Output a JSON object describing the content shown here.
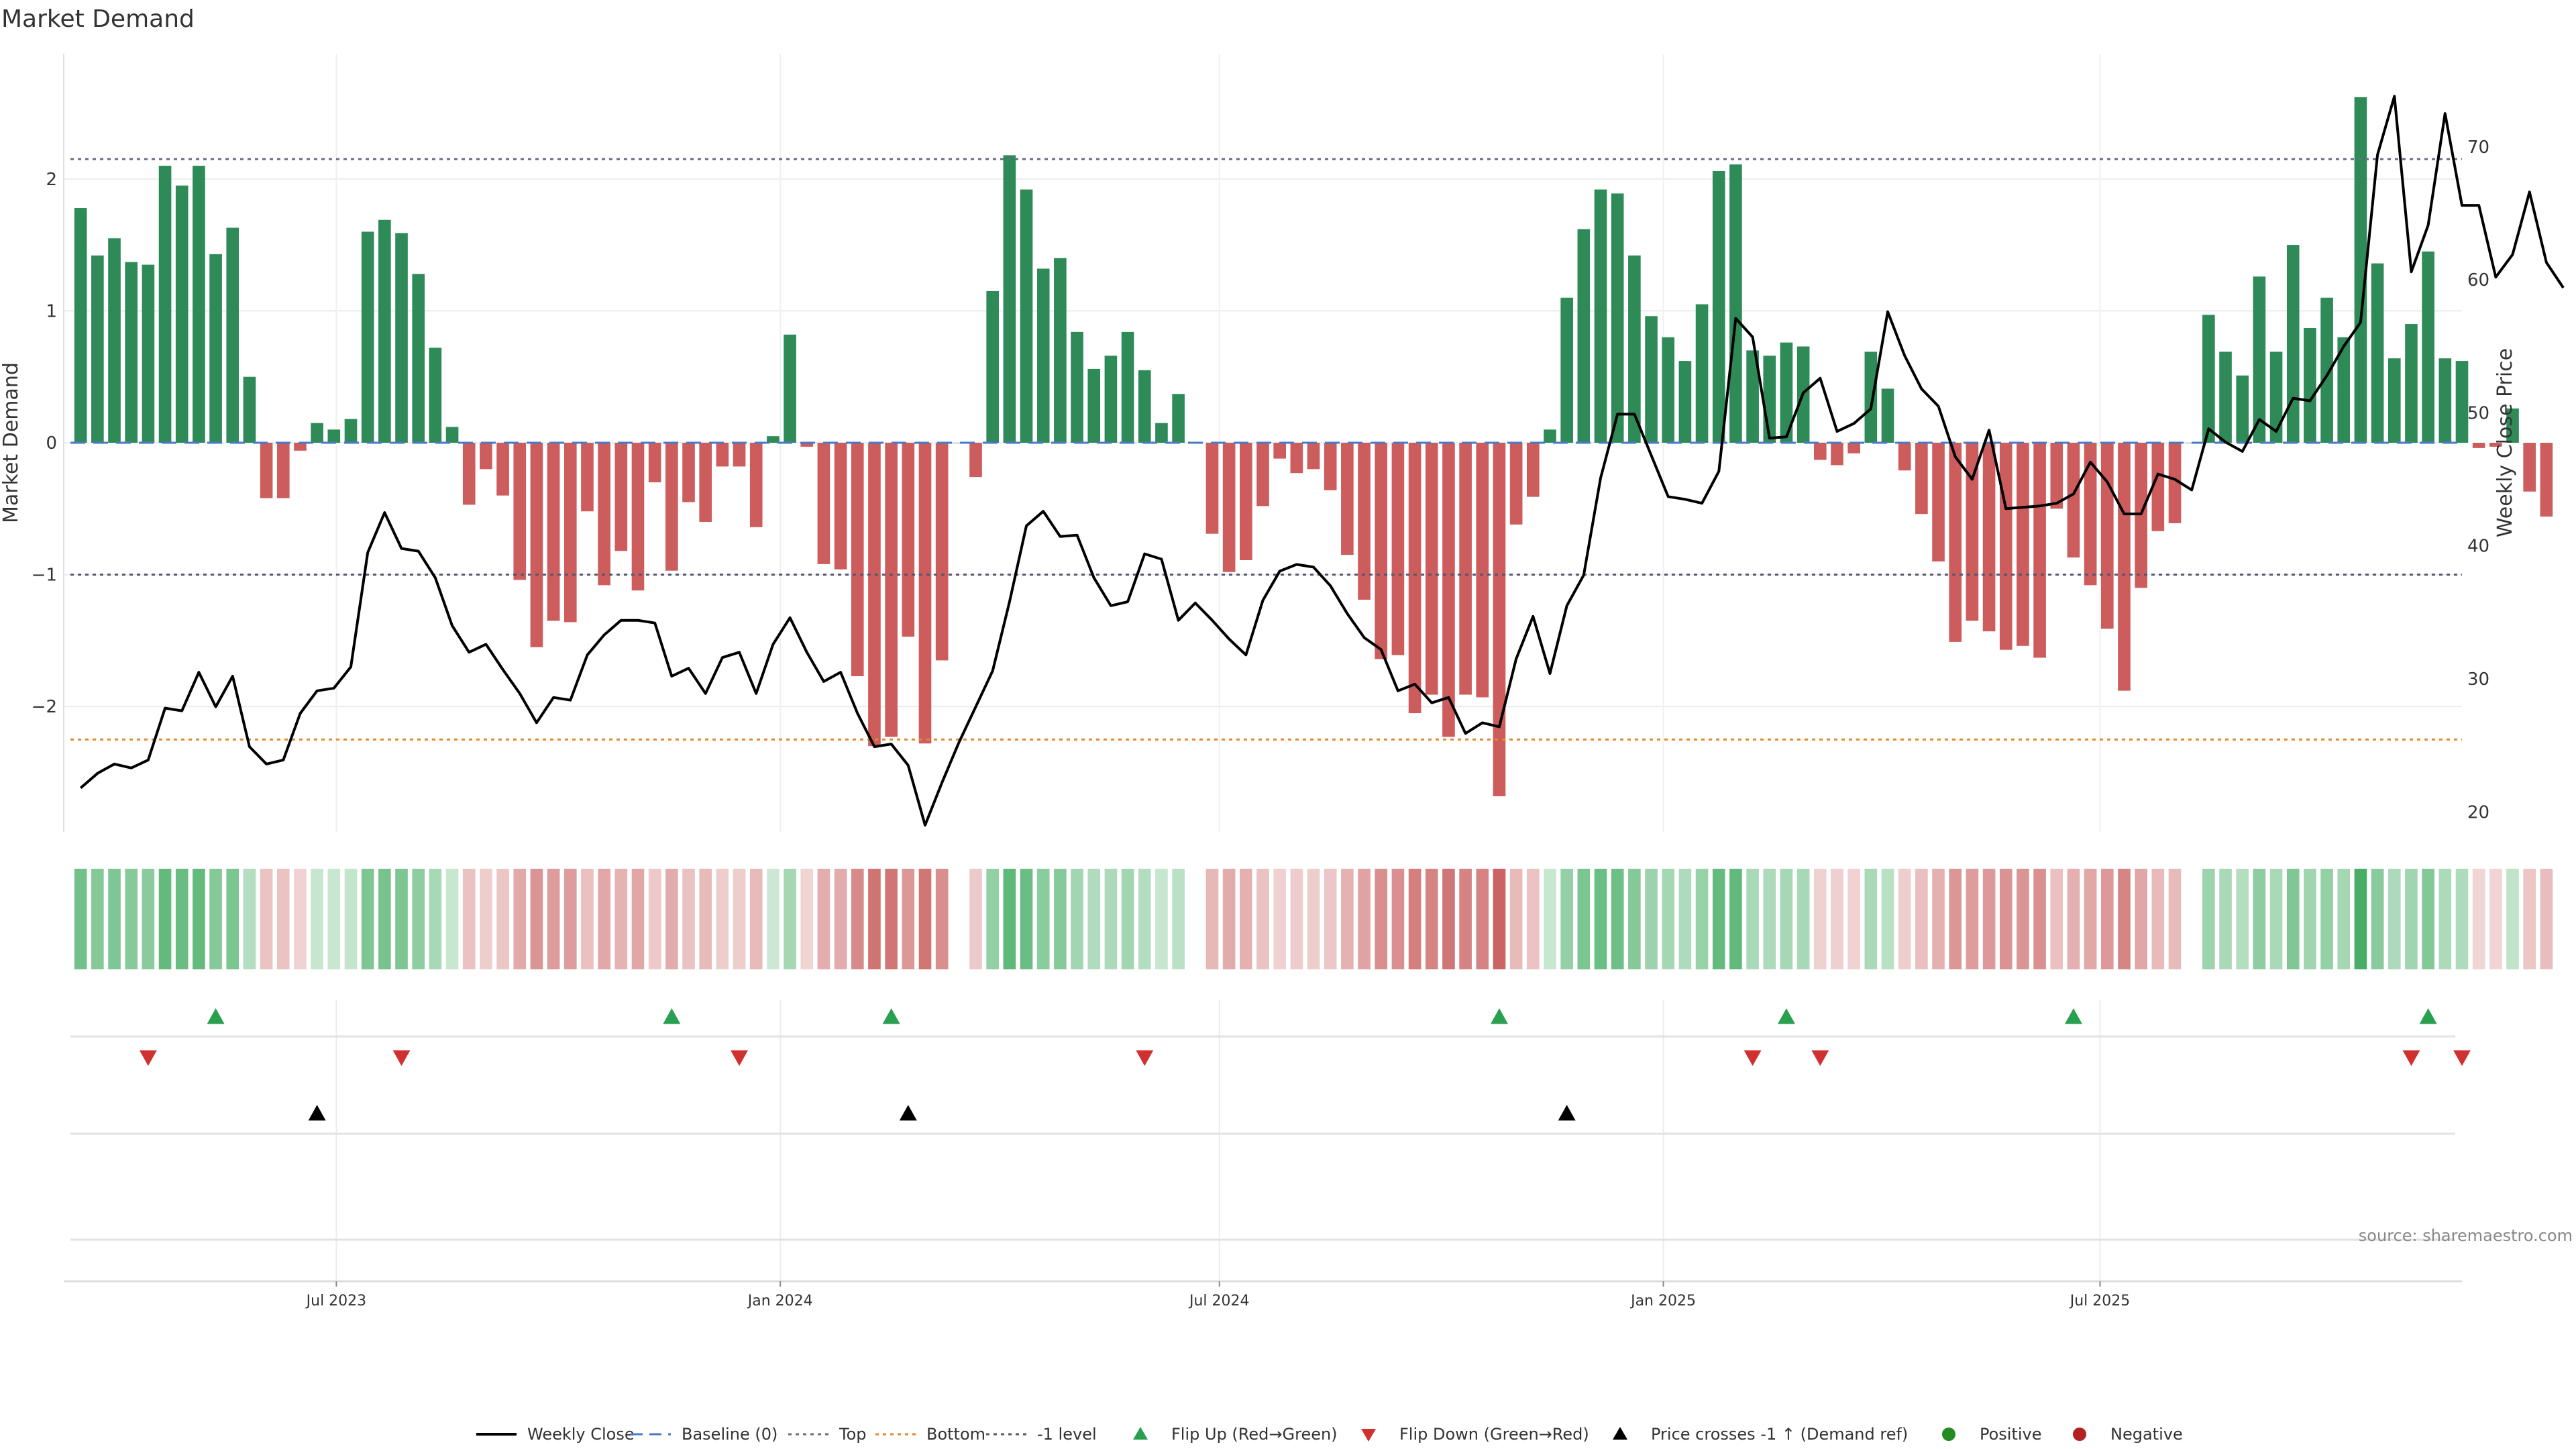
{
  "chart_data": {
    "type": "bar",
    "title": "Market Demand",
    "ylabel": "Market Demand",
    "y2label": "Weekly Close Price",
    "ylim": [
      -2.95,
      2.95
    ],
    "y2lim": [
      18.5,
      77
    ],
    "yticks": [
      -2,
      -1,
      0,
      1,
      2
    ],
    "yticklabels": [
      "−2",
      "−1",
      "0",
      "1",
      "2"
    ],
    "y2ticks": [
      20,
      30,
      40,
      50,
      60,
      70
    ],
    "xrange": [
      "2023-03-10",
      "2025-11-28"
    ],
    "xticks": [
      {
        "date": "2023-07-01",
        "label": "Jul 2023"
      },
      {
        "date": "2024-01-01",
        "label": "Jan 2024"
      },
      {
        "date": "2024-07-01",
        "label": "Jul 2024"
      },
      {
        "date": "2025-01-01",
        "label": "Jan 2025"
      },
      {
        "date": "2025-07-01",
        "label": "Jul 2025"
      }
    ],
    "start_date": "2023-03-17",
    "reference_lines": {
      "top": 2.15,
      "bottom": -2.25,
      "minus_one": -1.0,
      "baseline": 0
    },
    "demand": [
      1.78,
      1.42,
      1.55,
      1.37,
      1.35,
      2.1,
      1.95,
      2.1,
      1.43,
      1.63,
      0.5,
      -0.42,
      -0.42,
      -0.06,
      0.15,
      0.1,
      0.18,
      1.6,
      1.69,
      1.59,
      1.28,
      0.72,
      0.12,
      -0.47,
      -0.2,
      -0.4,
      -1.04,
      -1.55,
      -1.35,
      -1.36,
      -0.52,
      -1.08,
      -0.82,
      -1.12,
      -0.3,
      -0.97,
      -0.45,
      -0.6,
      -0.18,
      -0.18,
      -0.64,
      0.05,
      0.82,
      -0.03,
      -0.92,
      -0.96,
      -1.77,
      -2.3,
      -2.23,
      -1.47,
      -2.28,
      -1.65,
      0,
      -0.26,
      1.15,
      2.18,
      1.92,
      1.32,
      1.4,
      0.84,
      0.56,
      0.66,
      0.84,
      0.55,
      0.15,
      0.37,
      0,
      -0.69,
      -0.98,
      -0.89,
      -0.48,
      -0.12,
      -0.23,
      -0.2,
      -0.36,
      -0.85,
      -1.19,
      -1.64,
      -1.61,
      -2.05,
      -1.91,
      -2.23,
      -1.91,
      -1.93,
      -2.68,
      -0.62,
      -0.41,
      0.1,
      1.1,
      1.62,
      1.92,
      1.89,
      1.42,
      0.96,
      0.8,
      0.62,
      1.05,
      2.06,
      2.11,
      0.7,
      0.66,
      0.76,
      0.73,
      -0.13,
      -0.17,
      -0.08,
      0.69,
      0.41,
      -0.21,
      -0.54,
      -0.9,
      -1.51,
      -1.35,
      -1.43,
      -1.57,
      -1.54,
      -1.63,
      -0.5,
      -0.87,
      -1.08,
      -1.41,
      -1.88,
      -1.1,
      -0.67,
      -0.61,
      0,
      0.97,
      0.69,
      0.51,
      1.26,
      0.69,
      1.5,
      0.87,
      1.1,
      0.8,
      2.62,
      1.36,
      0.64,
      0.9,
      1.45,
      0.64,
      0.62,
      -0.04,
      -0.03,
      0.26,
      -0.37,
      -0.56
    ],
    "price": [
      21.8,
      22.9,
      23.6,
      23.3,
      23.9,
      27.8,
      27.6,
      30.5,
      27.9,
      30.2,
      24.9,
      23.6,
      23.9,
      27.4,
      29.1,
      29.3,
      30.9,
      39.5,
      42.5,
      39.8,
      39.6,
      37.6,
      34.0,
      32.0,
      32.6,
      30.7,
      28.9,
      26.7,
      28.6,
      28.4,
      31.8,
      33.3,
      34.4,
      34.4,
      34.2,
      30.2,
      30.8,
      28.9,
      31.6,
      32.0,
      28.9,
      32.6,
      34.6,
      32.0,
      29.8,
      30.5,
      27.4,
      24.9,
      25.1,
      23.5,
      19.0,
      22.2,
      25.2,
      27.9,
      30.6,
      35.8,
      41.5,
      42.6,
      40.7,
      40.8,
      37.6,
      35.5,
      35.8,
      39.4,
      39.0,
      34.4,
      35.7,
      34.4,
      33.0,
      31.8,
      35.9,
      38.1,
      38.6,
      38.4,
      37.0,
      34.9,
      33.1,
      32.2,
      29.1,
      29.6,
      28.2,
      28.6,
      25.9,
      26.7,
      26.4,
      31.5,
      34.7,
      30.4,
      35.5,
      37.8,
      45.1,
      49.9,
      49.9,
      46.8,
      43.7,
      43.5,
      43.2,
      45.6,
      57.1,
      55.7,
      48.1,
      48.2,
      51.5,
      52.6,
      48.6,
      49.2,
      50.3,
      57.6,
      54.3,
      51.8,
      50.5,
      46.7,
      45.0,
      48.7,
      42.8,
      42.9,
      43.0,
      43.2,
      43.9,
      46.3,
      44.8,
      42.4,
      42.4,
      45.4,
      45.0,
      44.2,
      48.8,
      47.8,
      47.1,
      49.5,
      48.6,
      51.1,
      50.9,
      52.8,
      55.0,
      56.8,
      69.4,
      73.8,
      60.6,
      64.1,
      72.5,
      65.6,
      65.6,
      60.2,
      61.9,
      66.6,
      61.3,
      59.4
    ],
    "series": [
      {
        "name": "Weekly Close"
      },
      {
        "name": "Baseline (0)"
      },
      {
        "name": "Top"
      },
      {
        "name": "Bottom"
      },
      {
        "name": "-1 level"
      },
      {
        "name": "Flip Up (Red→Green)"
      },
      {
        "name": "Flip Down (Green→Red)"
      },
      {
        "name": "Price crosses -1 ↑ (Demand ref)"
      },
      {
        "name": "Positive"
      },
      {
        "name": "Negative"
      }
    ],
    "flip_up_dates": [
      "2023-05-12",
      "2023-11-17",
      "2024-02-16",
      "2024-10-25",
      "2025-02-21",
      "2025-06-20",
      "2025-11-14"
    ],
    "flip_down_dates": [
      "2023-04-14",
      "2023-07-28",
      "2023-12-15",
      "2024-05-31",
      "2025-02-07",
      "2025-03-07",
      "2025-11-07",
      "2025-11-28"
    ],
    "price_cross_dates": [
      "2023-06-23",
      "2024-02-23",
      "2024-11-22"
    ],
    "colors": {
      "positive": "#2e8b57",
      "negative": "#cd5c5c",
      "price": "#000000",
      "baseline": "#4a78c8",
      "top": "#6b6b8a",
      "bottom": "#e08a2e",
      "minus_one": "#55556e",
      "flip_up": "#28a050",
      "flip_down": "#d03030",
      "cross": "#000000",
      "positive_dot": "#228b22",
      "negative_dot": "#b22222",
      "heat_pos": "#3aa85a",
      "heat_neg": "#c85a5a"
    },
    "legend_placement": "bottom-center",
    "grid": true,
    "source": "source: sharemaestro.com"
  }
}
